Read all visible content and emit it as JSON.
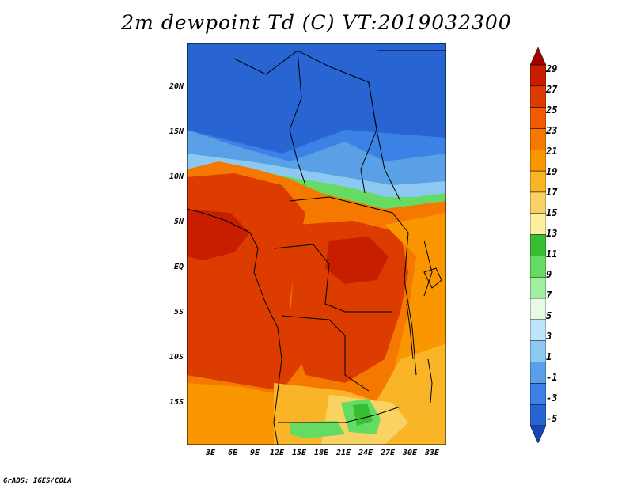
{
  "title": "2m dewpoint Td (C) VT:2019032300",
  "credit": "GrADS: IGES/COLA",
  "y_axis": {
    "labels": [
      "20N",
      "15N",
      "10N",
      "5N",
      "EQ",
      "5S",
      "10S",
      "15S"
    ]
  },
  "x_axis": {
    "labels": [
      "3E",
      "6E",
      "9E",
      "12E",
      "15E",
      "18E",
      "21E",
      "24E",
      "27E",
      "30E",
      "33E"
    ]
  },
  "colorbar": {
    "labels": [
      "29",
      "27",
      "25",
      "23",
      "21",
      "19",
      "17",
      "15",
      "13",
      "11",
      "9",
      "7",
      "5",
      "3",
      "1",
      "-1",
      "-3",
      "-5"
    ],
    "colors": [
      "#a50000",
      "#c81e00",
      "#dc3c00",
      "#f05a00",
      "#f57800",
      "#f99600",
      "#fab428",
      "#fad264",
      "#fcf0a0",
      "#37be32",
      "#64dc64",
      "#a0f0a0",
      "#e6fae6",
      "#bee6fa",
      "#8cc8f0",
      "#5aa0e6",
      "#3c82e6",
      "#2864d2",
      "#1446b4"
    ]
  },
  "map": {
    "projection": "lat-lon",
    "lon_range": [
      "0E",
      "35E"
    ],
    "lat_range": [
      "20S",
      "25N"
    ]
  }
}
